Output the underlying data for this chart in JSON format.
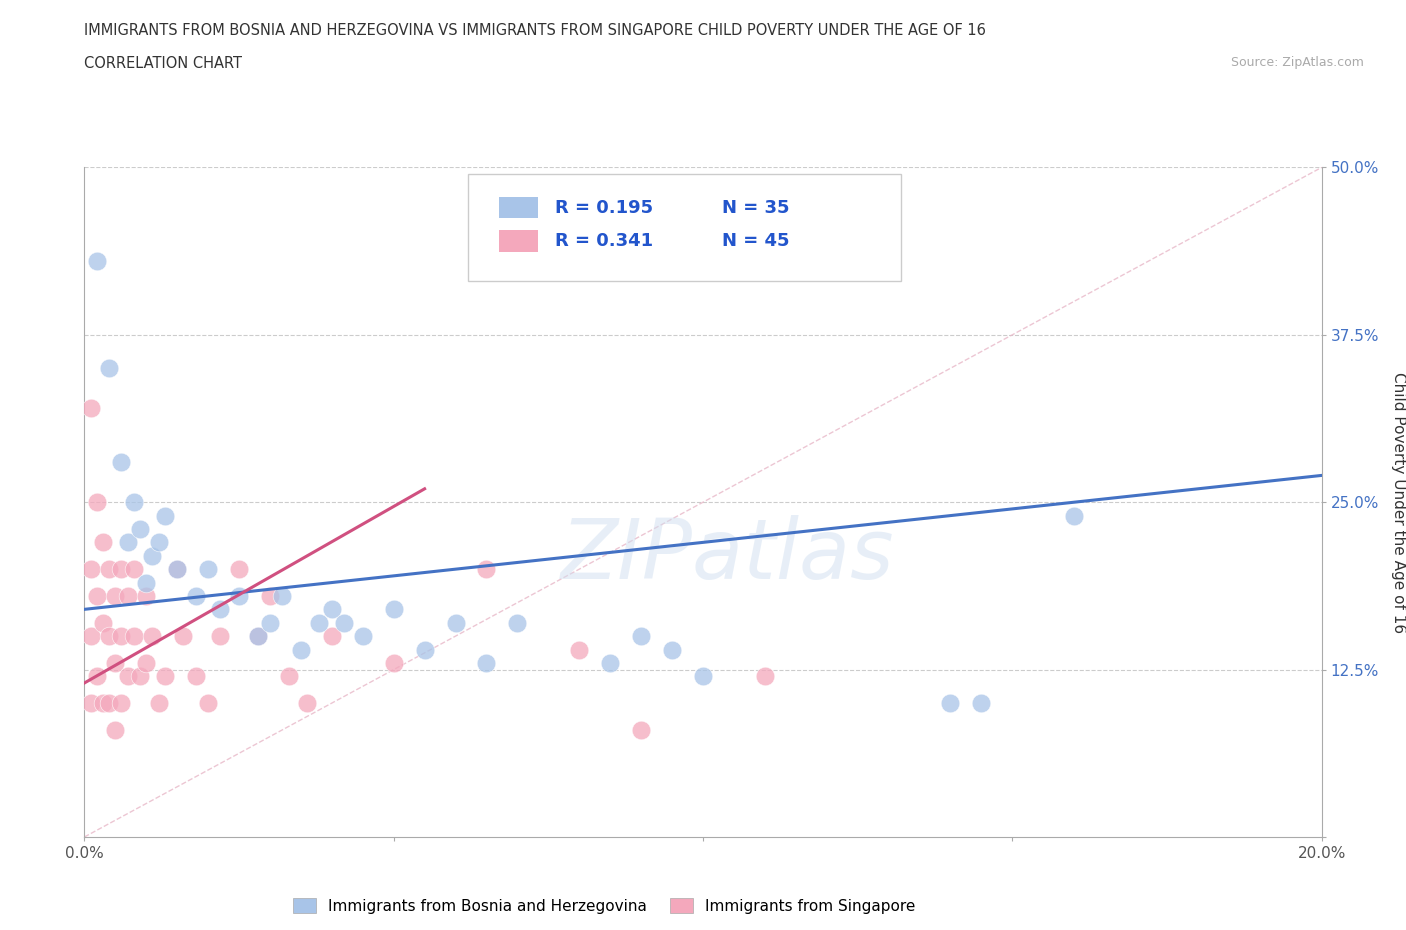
{
  "title_line1": "IMMIGRANTS FROM BOSNIA AND HERZEGOVINA VS IMMIGRANTS FROM SINGAPORE CHILD POVERTY UNDER THE AGE OF 16",
  "title_line2": "CORRELATION CHART",
  "source_text": "Source: ZipAtlas.com",
  "ylabel": "Child Poverty Under the Age of 16",
  "xlim": [
    0.0,
    0.2
  ],
  "ylim": [
    0.0,
    0.5
  ],
  "xticks": [
    0.0,
    0.05,
    0.1,
    0.15,
    0.2
  ],
  "yticks": [
    0.0,
    0.125,
    0.25,
    0.375,
    0.5
  ],
  "watermark": "ZIPatlas",
  "color_bosnia": "#a8c4e8",
  "color_singapore": "#f4a8bc",
  "color_line_bosnia": "#4472c4",
  "color_line_singapore": "#d05080",
  "color_diag": "#e8b8c8",
  "bosnia_x": [
    0.002,
    0.004,
    0.006,
    0.007,
    0.008,
    0.009,
    0.01,
    0.011,
    0.012,
    0.013,
    0.015,
    0.018,
    0.02,
    0.022,
    0.025,
    0.028,
    0.03,
    0.032,
    0.035,
    0.038,
    0.04,
    0.042,
    0.045,
    0.05,
    0.055,
    0.06,
    0.065,
    0.07,
    0.085,
    0.09,
    0.095,
    0.1,
    0.14,
    0.145,
    0.16
  ],
  "bosnia_y": [
    0.43,
    0.35,
    0.28,
    0.22,
    0.25,
    0.23,
    0.19,
    0.21,
    0.22,
    0.24,
    0.2,
    0.18,
    0.2,
    0.17,
    0.18,
    0.15,
    0.16,
    0.18,
    0.14,
    0.16,
    0.17,
    0.16,
    0.15,
    0.17,
    0.14,
    0.16,
    0.13,
    0.16,
    0.13,
    0.15,
    0.14,
    0.12,
    0.1,
    0.1,
    0.24
  ],
  "singapore_x": [
    0.001,
    0.001,
    0.001,
    0.001,
    0.002,
    0.002,
    0.002,
    0.003,
    0.003,
    0.003,
    0.004,
    0.004,
    0.004,
    0.005,
    0.005,
    0.005,
    0.006,
    0.006,
    0.006,
    0.007,
    0.007,
    0.008,
    0.008,
    0.009,
    0.01,
    0.01,
    0.011,
    0.012,
    0.013,
    0.015,
    0.016,
    0.018,
    0.02,
    0.022,
    0.025,
    0.028,
    0.03,
    0.033,
    0.036,
    0.04,
    0.05,
    0.065,
    0.08,
    0.09,
    0.11
  ],
  "singapore_y": [
    0.32,
    0.2,
    0.15,
    0.1,
    0.25,
    0.18,
    0.12,
    0.22,
    0.16,
    0.1,
    0.2,
    0.15,
    0.1,
    0.18,
    0.13,
    0.08,
    0.2,
    0.15,
    0.1,
    0.18,
    0.12,
    0.2,
    0.15,
    0.12,
    0.18,
    0.13,
    0.15,
    0.1,
    0.12,
    0.2,
    0.15,
    0.12,
    0.1,
    0.15,
    0.2,
    0.15,
    0.18,
    0.12,
    0.1,
    0.15,
    0.13,
    0.2,
    0.14,
    0.08,
    0.12
  ],
  "legend_entries": [
    {
      "label": "Immigrants from Bosnia and Herzegovina",
      "r": "R = 0.195",
      "n": "N = 35"
    },
    {
      "label": "Immigrants from Singapore",
      "r": "R = 0.341",
      "n": "N = 45"
    }
  ]
}
